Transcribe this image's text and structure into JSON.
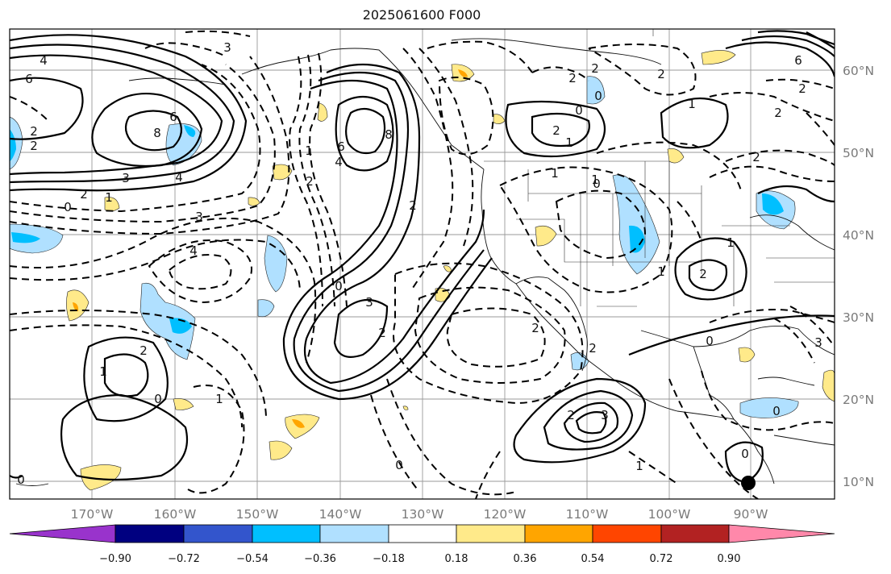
{
  "title": "2025061600 F000",
  "lon_labels": [
    "170°W",
    "160°W",
    "150°W",
    "140°W",
    "130°W",
    "120°W",
    "110°W",
    "100°W",
    "90°W"
  ],
  "lat_labels": [
    "60°N",
    "50°N",
    "40°N",
    "30°N",
    "20°N",
    "10°N"
  ],
  "colorbar": {
    "colors": [
      "#9933cc",
      "#000080",
      "#3355cc",
      "#00bfff",
      "#b0e0ff",
      "#ffffff",
      "#ffea8a",
      "#ffa500",
      "#ff4500",
      "#b22222",
      "#ff88aa"
    ],
    "tick_labels": [
      "−0.90",
      "−0.72",
      "−0.54",
      "−0.36",
      "−0.18",
      "0.18",
      "0.36",
      "0.54",
      "0.72",
      "0.90"
    ]
  },
  "contour_labels": [
    "4",
    "6",
    "2",
    "2",
    "6",
    "8",
    "3",
    "4",
    "2",
    "1",
    "3",
    "0",
    "4",
    "6",
    "8",
    "4",
    "2",
    "2",
    "1",
    "0",
    "3",
    "2",
    "0",
    "1",
    "2",
    "0",
    "1",
    "2",
    "3",
    "0",
    "1",
    "2",
    "0",
    "2",
    "1",
    "2",
    "1",
    "0",
    "1",
    "2",
    "3",
    "2",
    "6",
    "2",
    "1",
    "3",
    "2",
    "2",
    "0",
    "0",
    "1",
    "0",
    "2",
    "2",
    "1",
    "0"
  ]
}
